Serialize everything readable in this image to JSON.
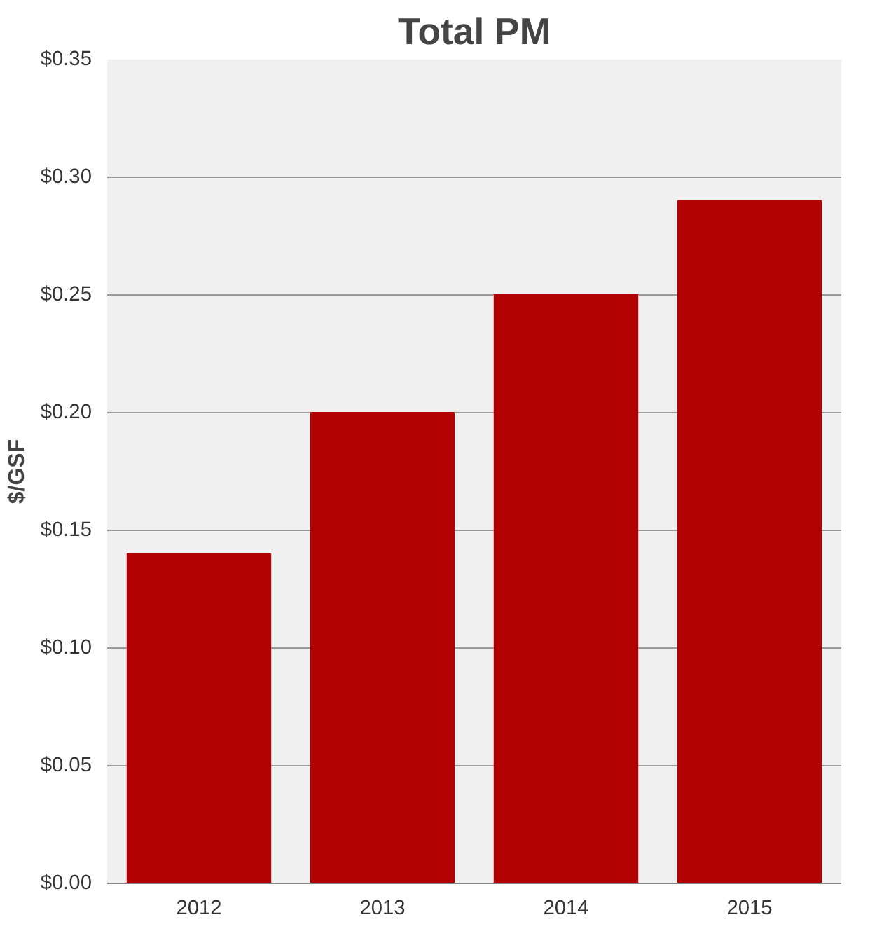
{
  "chart_data": {
    "type": "bar",
    "title": "Total PM",
    "ylabel": "$/GSF",
    "categories": [
      "2012",
      "2013",
      "2014",
      "2015"
    ],
    "values": [
      0.14,
      0.2,
      0.25,
      0.29
    ],
    "color": "#b30000",
    "ylim": [
      0,
      0.35
    ],
    "yticks": [
      {
        "value": 0,
        "label": "$0.00"
      },
      {
        "value": 0.05,
        "label": "$0.05"
      },
      {
        "value": 0.1,
        "label": "$0.10"
      },
      {
        "value": 0.15,
        "label": "$0.15"
      },
      {
        "value": 0.2,
        "label": "$0.20"
      },
      {
        "value": 0.25,
        "label": "$0.25"
      },
      {
        "value": 0.3,
        "label": "$0.30"
      },
      {
        "value": 0.35,
        "label": "$0.35"
      }
    ],
    "grid": "y"
  }
}
